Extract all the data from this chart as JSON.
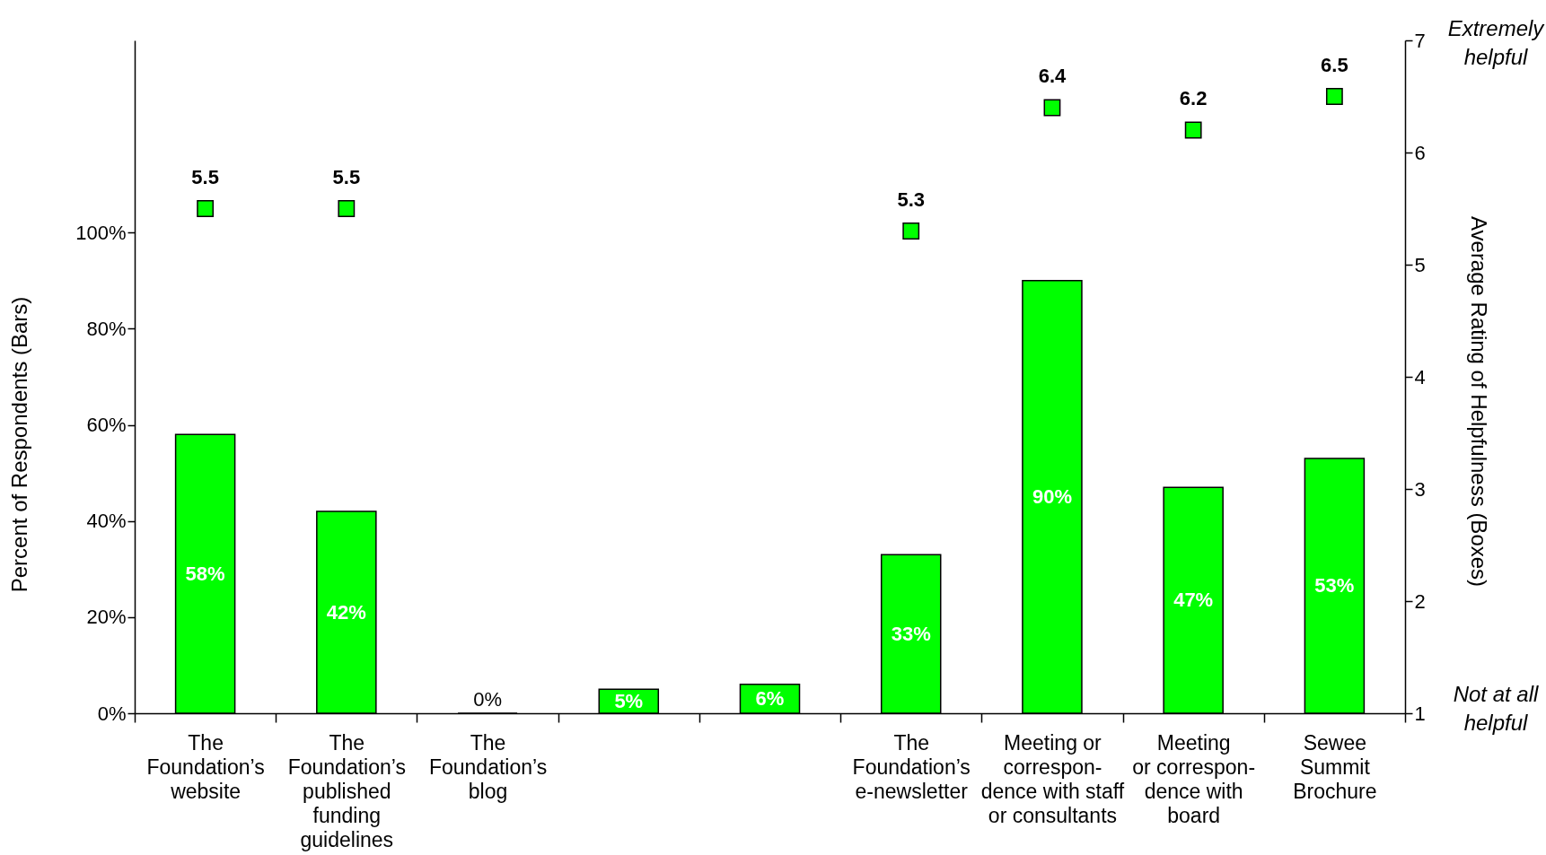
{
  "chart_data": {
    "type": "bar",
    "categories": [
      "The\nFoundation’s\nwebsite",
      "The\nFoundation’s\npublished\nfunding\nguidelines",
      "The\nFoundation’s\nblog",
      null,
      null,
      "The\nFoundation’s\ne-newsletter",
      "Meeting or\ncorrespon-\ndence with staff\nor consultants",
      "Meeting\nor correspon-\ndence with\nboard",
      "Sewee\nSummit\nBrochure"
    ],
    "ylabel": "Percent of Respondents (Bars)",
    "y2label": "Average Rating of Helpfulness (Boxes)",
    "ylim": [
      0,
      140
    ],
    "yticks": [
      {
        "value": 0,
        "label": "0%"
      },
      {
        "value": 20,
        "label": "20%"
      },
      {
        "value": 40,
        "label": "40%"
      },
      {
        "value": 60,
        "label": "60%"
      },
      {
        "value": 80,
        "label": "80%"
      },
      {
        "value": 100,
        "label": "100%"
      }
    ],
    "y2lim": [
      1,
      7
    ],
    "y2ticks": [
      1,
      2,
      3,
      4,
      5,
      6,
      7
    ],
    "series": [
      {
        "color": "#00ff00",
        "values": [
          58,
          42,
          0,
          5,
          6,
          33,
          90,
          47,
          53
        ],
        "value_labels": [
          "58%",
          "42%",
          "0%",
          "5%",
          "6%",
          "33%",
          "90%",
          "47%",
          "53%"
        ]
      },
      {
        "type": "scatter",
        "axis": "y2",
        "marker": "square",
        "color": "#00ff00",
        "values": [
          5.5,
          5.5,
          null,
          null,
          null,
          5.3,
          6.4,
          6.2,
          6.5
        ],
        "value_labels": [
          "5.5",
          "5.5",
          null,
          null,
          null,
          "5.3",
          "6.4",
          "6.2",
          "6.5"
        ]
      }
    ],
    "annotations": [
      "Extremely\nhelpful",
      "Not at all\nhelpful"
    ]
  }
}
